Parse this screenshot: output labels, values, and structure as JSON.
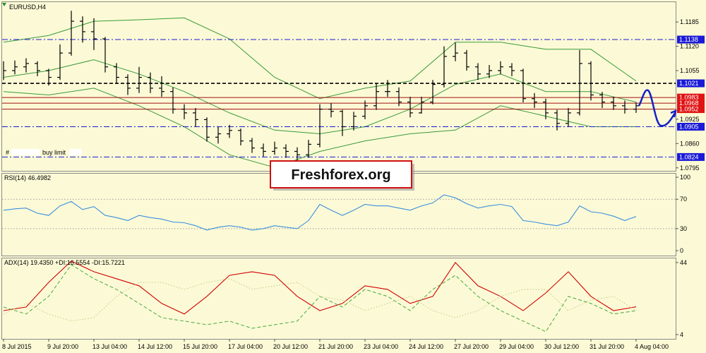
{
  "chart_data": [
    {
      "type": "ohlc",
      "title": "EURUSD,H4",
      "high": [
        1.108,
        1.1082,
        1.1088,
        1.108,
        1.106,
        1.1125,
        1.1215,
        1.12,
        1.1195,
        1.1145,
        1.1075,
        1.1045,
        1.1065,
        1.105,
        1.104,
        1.101,
        1.0965,
        1.0955,
        1.093,
        1.0905,
        1.091,
        1.09,
        1.0875,
        1.086,
        1.0865,
        1.0858,
        1.085,
        1.087,
        1.0965,
        1.0968,
        1.095,
        1.0945,
        1.0975,
        1.102,
        1.103,
        1.101,
        1.0985,
        1.0985,
        1.103,
        1.112,
        1.113,
        1.111,
        1.1075,
        1.107,
        1.108,
        1.1075,
        1.106,
        1.0995,
        1.098,
        1.095,
        1.0955,
        1.111,
        1.108,
        1.0998,
        1.0985,
        1.0975,
        1.097
      ],
      "low": [
        1.103,
        1.1045,
        1.105,
        1.104,
        1.1015,
        1.103,
        1.1095,
        1.113,
        1.111,
        1.105,
        1.102,
        1.099,
        1.0995,
        1.0995,
        1.0985,
        1.094,
        1.0925,
        1.0905,
        1.0865,
        1.086,
        1.0875,
        1.0855,
        1.0835,
        1.0825,
        1.083,
        1.0822,
        1.0808,
        1.0822,
        1.085,
        1.093,
        1.088,
        1.0895,
        1.0925,
        1.095,
        1.0985,
        1.096,
        1.093,
        1.094,
        1.0965,
        1.101,
        1.108,
        1.1055,
        1.103,
        1.1035,
        1.1045,
        1.104,
        1.097,
        1.0955,
        1.0925,
        1.0895,
        1.0905,
        1.0935,
        1.0975,
        1.0955,
        1.095,
        1.094,
        1.0942
      ],
      "close": [
        1.1055,
        1.1065,
        1.1074,
        1.1055,
        1.1037,
        1.1102,
        1.1187,
        1.1159,
        1.114,
        1.1065,
        1.1037,
        1.1008,
        1.1037,
        1.1008,
        1.0999,
        1.0952,
        1.0942,
        1.0924,
        1.0877,
        1.0886,
        1.0895,
        1.0867,
        1.0848,
        1.0839,
        1.0848,
        1.0839,
        1.083,
        1.0858,
        1.0952,
        1.0946,
        1.0905,
        1.0933,
        1.0961,
        1.0999,
        1.0999,
        1.0971,
        1.0942,
        1.0971,
        1.1018,
        1.1093,
        1.1102,
        1.1065,
        1.1046,
        1.1055,
        1.1065,
        1.1055,
        1.098,
        1.0971,
        1.0942,
        1.0914,
        1.0942,
        1.1074,
        1.099,
        1.0971,
        1.0961,
        1.0952,
        1.0961
      ],
      "color": "#000000",
      "bands": {
        "color": "#3a9a3a",
        "x": [
          0,
          4,
          8,
          12,
          16,
          20,
          24,
          28,
          32,
          36,
          40,
          44,
          48,
          52,
          56
        ],
        "series": [
          {
            "values": [
              1.1131,
              1.1149,
              1.1187,
              1.1191,
              1.1196,
              1.114,
              1.1037,
              1.098,
              1.1008,
              1.1027,
              1.1131,
              1.1131,
              1.1112,
              1.1112,
              1.1027
            ]
          },
          {
            "values": [
              1.1037,
              1.1055,
              1.1084,
              1.1046,
              1.0999,
              1.0942,
              1.0896,
              1.0886,
              1.0905,
              1.0952,
              1.1018,
              1.1046,
              1.0999,
              1.0999,
              1.0971
            ]
          },
          {
            "values": [
              1.0999,
              1.099,
              1.1008,
              1.0961,
              1.0905,
              1.083,
              1.0796,
              1.0839,
              1.0867,
              1.0886,
              1.0896,
              1.0961,
              1.0933,
              1.0905,
              1.0905
            ]
          }
        ]
      },
      "levels": [
        {
          "value": 1.1138,
          "color": "#1a1ad8",
          "style": "dashdot"
        },
        {
          "value": 1.1021,
          "color": "#1a1ad8",
          "line_color": "#000000",
          "style": "dashed"
        },
        {
          "value": 1.0983,
          "color": "#e01414",
          "line_color": "#a01010",
          "style": "solid"
        },
        {
          "value": 1.0968,
          "color": "#e01414",
          "line_color": "#a01010",
          "style": "solid"
        },
        {
          "value": 1.0952,
          "color": "#e01414",
          "line_color": "#a01010",
          "style": "solid"
        },
        {
          "value": 1.0905,
          "color": "#1a1ad8",
          "style": "dashdot"
        },
        {
          "value": 1.0824,
          "color": "#1a1ad8",
          "style": "dashdot"
        }
      ],
      "annotations": [
        "#",
        "buy limit"
      ],
      "banner": "Freshforex.org",
      "xlim": [
        -0.125,
        59.5
      ],
      "xticks": [
        {
          "value": 0,
          "label": "8 Jul 2015"
        },
        {
          "value": 4,
          "label": "9 Jul 20:00"
        },
        {
          "value": 8,
          "label": "13 Jul 04:00"
        },
        {
          "value": 12,
          "label": "14 Jul 12:00"
        },
        {
          "value": 16,
          "label": "15 Jul 20:00"
        },
        {
          "value": 20,
          "label": "17 Jul 04:00"
        },
        {
          "value": 24,
          "label": "20 Jul 12:00"
        },
        {
          "value": 28,
          "label": "21 Jul 20:00"
        },
        {
          "value": 32,
          "label": "23 Jul 04:00"
        },
        {
          "value": 36,
          "label": "24 Jul 12:00"
        },
        {
          "value": 40,
          "label": "27 Jul 20:00"
        },
        {
          "value": 44,
          "label": "29 Jul 04:00"
        },
        {
          "value": 48,
          "label": "30 Jul 12:00"
        },
        {
          "value": 52,
          "label": "31 Jul 20:00"
        },
        {
          "value": 56,
          "label": "4 Aug 04:00"
        }
      ],
      "ylim": [
        1.0787,
        1.124
      ],
      "yticks": [
        1.1185,
        {
          "value": 1.112,
          "label": "1.1120"
        },
        1.1055,
        1.0925,
        {
          "value": 1.086,
          "label": "1.0860"
        },
        1.0795
      ]
    },
    {
      "type": "line",
      "title": "RSI(14) 46.4982",
      "values": [
        55,
        57,
        58,
        51,
        48,
        61,
        67,
        56,
        60,
        48,
        45,
        41,
        48,
        45,
        43,
        39,
        38,
        34,
        28,
        32,
        34,
        32,
        28,
        30,
        34,
        32,
        30,
        41,
        63,
        55,
        48,
        55,
        63,
        61,
        61,
        58,
        55,
        61,
        65,
        76,
        72,
        64,
        58,
        61,
        63,
        60,
        41,
        39,
        36,
        34,
        39,
        61,
        53,
        51,
        47,
        41,
        46.5
      ],
      "color": "#3b8fe0",
      "levels": [
        70,
        30
      ],
      "ylim": [
        -6.7,
        105.8
      ],
      "yticks": [
        100,
        70,
        30,
        0
      ]
    },
    {
      "type": "line",
      "title": "ADX(14) 19.4350 +DI:16.5554 -DI:15.7221",
      "x": [
        0,
        2,
        4,
        6,
        8,
        10,
        12,
        14,
        16,
        18,
        20,
        22,
        24,
        26,
        28,
        30,
        32,
        34,
        36,
        38,
        40,
        42,
        44,
        46,
        48,
        50,
        52,
        54,
        56
      ],
      "series": [
        {
          "color": "#d00000",
          "style": "solid",
          "values": [
            17.3,
            19.3,
            33,
            44.8,
            38.9,
            35,
            31.1,
            21.3,
            15.4,
            25.2,
            36.9,
            38.9,
            36.9,
            25.2,
            17.3,
            21.3,
            31.1,
            29.1,
            21.3,
            25.2,
            44,
            31.1,
            25.2,
            17.3,
            27.1,
            38.9,
            25.2,
            17.3,
            19.4
          ]
        },
        {
          "color": "#56b04a",
          "style": "dashed",
          "values": [
            19.3,
            15.4,
            25.2,
            42.8,
            35,
            29.1,
            21.3,
            13.4,
            11.5,
            9.5,
            11.5,
            7.5,
            9.5,
            11.5,
            25.2,
            19.3,
            29.1,
            25.2,
            17.3,
            29.1,
            36.9,
            25.2,
            17.3,
            11.5,
            5.6,
            25.2,
            21.3,
            15.4,
            17.3
          ]
        },
        {
          "color": "#c9c98a",
          "style": "dotted",
          "values": [
            15.4,
            21.3,
            15.4,
            11.5,
            13.4,
            25.2,
            33,
            33,
            29.1,
            33,
            35,
            29.1,
            31.1,
            33,
            25.2,
            23.2,
            17.3,
            21.3,
            25.2,
            17.3,
            13.4,
            17.3,
            25.2,
            29.1,
            29.1,
            17.3,
            23.2,
            25.2,
            17.3
          ]
        }
      ],
      "ylim": [
        1.6,
        46.7
      ],
      "yticks": [
        44,
        4
      ]
    }
  ]
}
